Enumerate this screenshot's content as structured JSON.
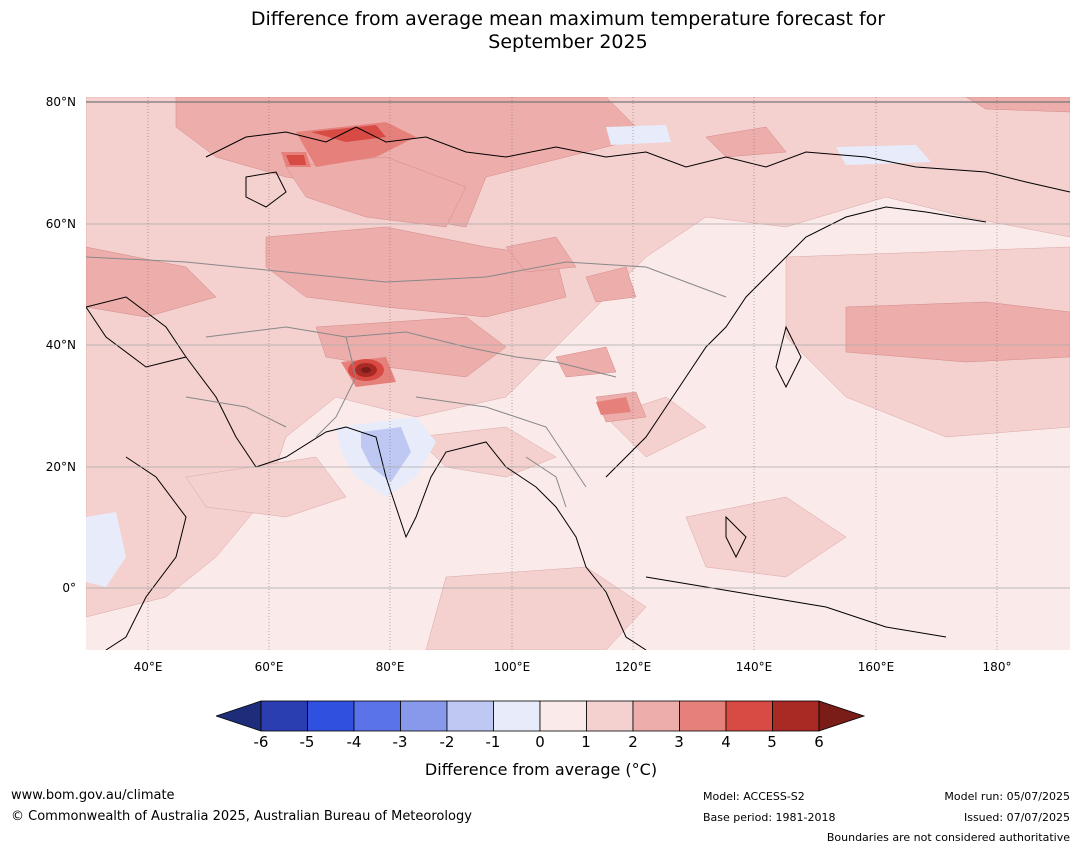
{
  "title_line1": "Difference from average mean maximum temperature forecast for",
  "title_line2": "September 2025",
  "lat_labels": [
    "80°N",
    "60°N",
    "40°N",
    "20°N",
    "0°"
  ],
  "lon_labels": [
    "40°E",
    "60°E",
    "80°E",
    "100°E",
    "120°E",
    "140°E",
    "160°E",
    "180°"
  ],
  "colorbar": {
    "label": "Difference from average (°C)",
    "ticks": [
      "-6",
      "-5",
      "-4",
      "-3",
      "-2",
      "-1",
      "0",
      "1",
      "2",
      "3",
      "4",
      "5",
      "6"
    ],
    "colors": [
      "#1e2d7a",
      "#2a3eb1",
      "#3050e0",
      "#5a73e8",
      "#8899ec",
      "#bfc8f3",
      "#e8ecfa",
      "#fbeaea",
      "#f4d0cf",
      "#edadab",
      "#e5807b",
      "#d84a44",
      "#a92a24",
      "#7a1d19"
    ]
  },
  "footer": {
    "website": "www.bom.gov.au/climate",
    "copyright": "© Commonwealth of Australia 2025, Australian Bureau of Meteorology",
    "model": "Model: ACCESS-S2",
    "base_period": "Base period: 1981-2018",
    "model_run": "Model run: 05/07/2025",
    "issued": "Issued: 07/07/2025",
    "disclaimer": "Boundaries are not considered authoritative"
  }
}
